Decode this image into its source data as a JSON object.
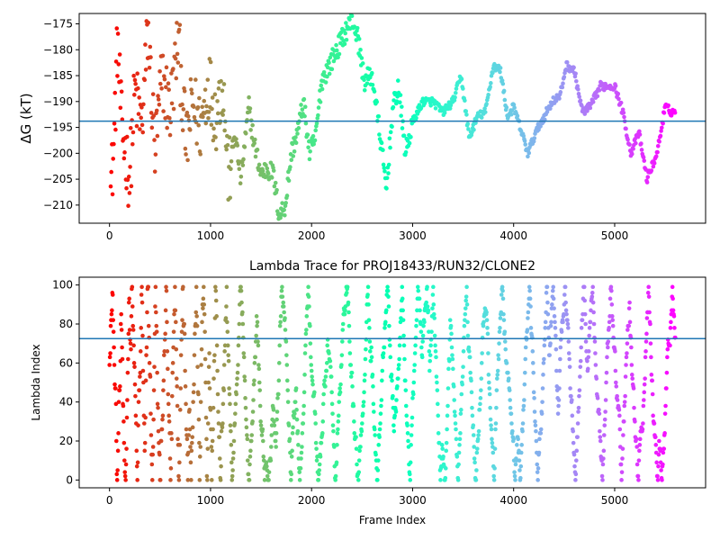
{
  "chart_data": [
    {
      "type": "scatter",
      "panel": "top",
      "title": "",
      "xlabel": "",
      "ylabel": "ΔG (kT)",
      "xlim": [
        -300,
        5900
      ],
      "ylim": [
        -213.5,
        -173
      ],
      "xticks": [
        0,
        1000,
        2000,
        3000,
        4000,
        5000
      ],
      "yticks": [
        -175,
        -180,
        -185,
        -190,
        -195,
        -200,
        -205,
        -210
      ],
      "hline": -193.8,
      "hline_color": "#1f77b4",
      "colormap": "rainbow (red at frame 0 to violet at last frame)",
      "grid": false,
      "legend": "none",
      "series_keypoints": [
        [
          0,
          -210
        ],
        [
          40,
          -200
        ],
        [
          80,
          -178
        ],
        [
          120,
          -195
        ],
        [
          200,
          -205
        ],
        [
          250,
          -188
        ],
        [
          320,
          -195
        ],
        [
          380,
          -176
        ],
        [
          450,
          -200
        ],
        [
          520,
          -185
        ],
        [
          600,
          -192
        ],
        [
          680,
          -178
        ],
        [
          760,
          -199
        ],
        [
          820,
          -190
        ],
        [
          900,
          -195
        ],
        [
          980,
          -186
        ],
        [
          1050,
          -193
        ],
        [
          1120,
          -186
        ],
        [
          1180,
          -205
        ],
        [
          1240,
          -196
        ],
        [
          1300,
          -205
        ],
        [
          1380,
          -191
        ],
        [
          1430,
          -198
        ],
        [
          1500,
          -204
        ],
        [
          1560,
          -203
        ],
        [
          1620,
          -204
        ],
        [
          1680,
          -212
        ],
        [
          1740,
          -210
        ],
        [
          1800,
          -200
        ],
        [
          1860,
          -196
        ],
        [
          1920,
          -190
        ],
        [
          1980,
          -200
        ],
        [
          2040,
          -197
        ],
        [
          2100,
          -186
        ],
        [
          2200,
          -182
        ],
        [
          2300,
          -178
        ],
        [
          2400,
          -174
        ],
        [
          2460,
          -178
        ],
        [
          2520,
          -186
        ],
        [
          2600,
          -185
        ],
        [
          2680,
          -197
        ],
        [
          2740,
          -207
        ],
        [
          2800,
          -192
        ],
        [
          2860,
          -187
        ],
        [
          2930,
          -200
        ],
        [
          3000,
          -194
        ],
        [
          3100,
          -190
        ],
        [
          3200,
          -190
        ],
        [
          3300,
          -192
        ],
        [
          3400,
          -190
        ],
        [
          3480,
          -185
        ],
        [
          3560,
          -197
        ],
        [
          3640,
          -193
        ],
        [
          3720,
          -192
        ],
        [
          3800,
          -183
        ],
        [
          3870,
          -184
        ],
        [
          3940,
          -193
        ],
        [
          4000,
          -191
        ],
        [
          4080,
          -196
        ],
        [
          4140,
          -200
        ],
        [
          4220,
          -196
        ],
        [
          4300,
          -193
        ],
        [
          4380,
          -190
        ],
        [
          4460,
          -189
        ],
        [
          4520,
          -183
        ],
        [
          4600,
          -184
        ],
        [
          4680,
          -192
        ],
        [
          4760,
          -191
        ],
        [
          4860,
          -187
        ],
        [
          5000,
          -187
        ],
        [
          5080,
          -192
        ],
        [
          5160,
          -200
        ],
        [
          5240,
          -196
        ],
        [
          5320,
          -205
        ],
        [
          5420,
          -200
        ],
        [
          5500,
          -191
        ],
        [
          5560,
          -192
        ]
      ]
    },
    {
      "type": "scatter",
      "panel": "bottom",
      "title": "Lambda Trace for PROJ18433/RUN32/CLONE2",
      "xlabel": "Frame Index",
      "ylabel": "Lambda Index",
      "xlim": [
        -300,
        5900
      ],
      "ylim": [
        -4,
        104
      ],
      "xticks": [
        0,
        1000,
        2000,
        3000,
        4000,
        5000
      ],
      "yticks": [
        0,
        20,
        40,
        60,
        80,
        100
      ],
      "hline": 72.5,
      "hline_color": "#1f77b4",
      "colormap": "rainbow (red at frame 0 to violet at last frame)",
      "grid": false,
      "legend": "none",
      "x_max_frame": 5600,
      "y_range": [
        0,
        99
      ]
    }
  ],
  "xticks_labels": [
    "0",
    "1000",
    "2000",
    "3000",
    "4000",
    "5000"
  ],
  "top_yticks_labels": [
    "−175",
    "−180",
    "−185",
    "−190",
    "−195",
    "−200",
    "−205",
    "−210"
  ],
  "bottom_yticks_labels": [
    "0",
    "20",
    "40",
    "60",
    "80",
    "100"
  ],
  "top_ylabel": "ΔG (kT)",
  "bottom_title": "Lambda Trace for PROJ18433/RUN32/CLONE2",
  "bottom_xlabel": "Frame Index",
  "bottom_ylabel": "Lambda Index"
}
